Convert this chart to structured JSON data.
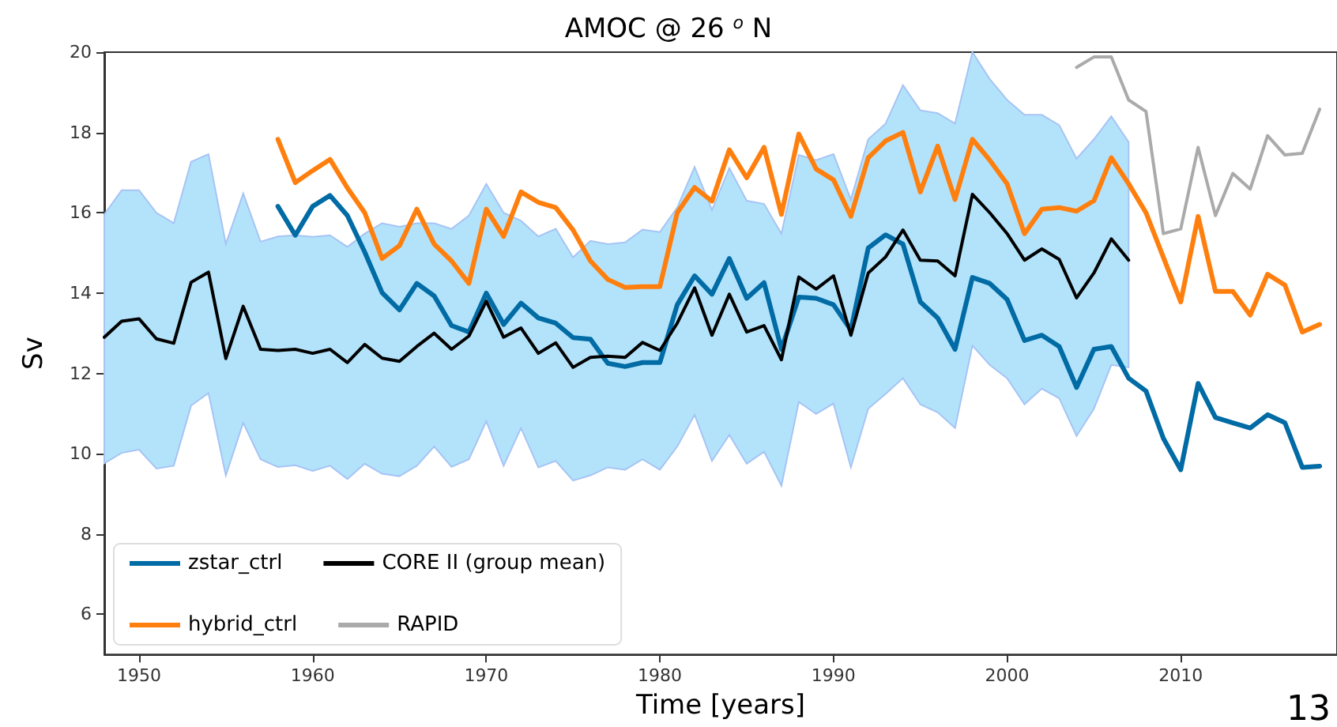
{
  "chart_data": {
    "type": "line",
    "title": "AMOC @ 26 $^{o}$ N",
    "xlabel": "Time [years]",
    "ylabel": "Sv",
    "xlim": [
      1948,
      2019
    ],
    "xticks": [
      1950,
      1960,
      1970,
      1980,
      1990,
      2000,
      2010
    ],
    "ylim": [
      5,
      20
    ],
    "yticks": [
      6,
      8,
      10,
      12,
      14,
      16,
      18,
      20
    ],
    "grid": false,
    "legend": "bottom left",
    "marker": "none",
    "line_style": "solid",
    "annotations": [
      "13"
    ],
    "series": [
      {
        "name": "zstar_ctrl",
        "color": "#006ba4",
        "x": [
          1958,
          1959,
          1960,
          1961,
          1962,
          1963,
          1964,
          1965,
          1966,
          1967,
          1968,
          1969,
          1970,
          1971,
          1972,
          1973,
          1974,
          1975,
          1976,
          1977,
          1978,
          1979,
          1980,
          1981,
          1982,
          1983,
          1984,
          1985,
          1986,
          1987,
          1988,
          1989,
          1990,
          1991,
          1992,
          1993,
          1994,
          1995,
          1996,
          1997,
          1998,
          1999,
          2000,
          2001,
          2002,
          2003,
          2004,
          2005,
          2006,
          2007,
          2008,
          2009,
          2010,
          2011,
          2012,
          2013,
          2014,
          2015,
          2016,
          2017,
          2018
        ],
        "values": [
          16.16,
          15.44,
          16.16,
          16.43,
          15.93,
          15.02,
          14.01,
          13.58,
          14.24,
          13.93,
          13.19,
          13.03,
          14.0,
          13.22,
          13.75,
          13.38,
          13.25,
          12.89,
          12.85,
          12.25,
          12.17,
          12.27,
          12.27,
          13.71,
          14.43,
          13.97,
          14.86,
          13.87,
          14.26,
          12.6,
          13.9,
          13.87,
          13.71,
          13.08,
          15.12,
          15.45,
          15.22,
          13.78,
          13.38,
          12.6,
          14.39,
          14.24,
          13.84,
          12.82,
          12.95,
          12.67,
          11.65,
          12.6,
          12.67,
          11.88,
          11.56,
          10.38,
          9.6,
          11.75,
          10.9,
          10.77,
          10.64,
          10.97,
          10.77,
          9.66,
          9.69
        ]
      },
      {
        "name": "hybrid_ctrl",
        "color": "#ff7f0e",
        "x": [
          1958,
          1959,
          1960,
          1961,
          1962,
          1963,
          1964,
          1965,
          1966,
          1967,
          1968,
          1969,
          1970,
          1971,
          1972,
          1973,
          1974,
          1975,
          1976,
          1977,
          1978,
          1979,
          1980,
          1981,
          1982,
          1983,
          1984,
          1985,
          1986,
          1987,
          1988,
          1989,
          1990,
          1991,
          1992,
          1993,
          1994,
          1995,
          1996,
          1997,
          1998,
          1999,
          2000,
          2001,
          2002,
          2003,
          2004,
          2005,
          2006,
          2007,
          2008,
          2009,
          2010,
          2011,
          2012,
          2013,
          2014,
          2015,
          2016,
          2017,
          2018
        ],
        "values": [
          17.83,
          16.75,
          17.05,
          17.33,
          16.62,
          16.0,
          14.86,
          15.18,
          16.09,
          15.22,
          14.8,
          14.24,
          16.09,
          15.41,
          16.52,
          16.26,
          16.13,
          15.57,
          14.8,
          14.34,
          14.14,
          14.16,
          14.16,
          16.0,
          16.63,
          16.29,
          17.57,
          16.87,
          17.63,
          15.96,
          17.96,
          17.09,
          16.82,
          15.91,
          17.37,
          17.79,
          18.0,
          16.52,
          17.66,
          16.33,
          17.83,
          17.31,
          16.72,
          15.48,
          16.09,
          16.13,
          16.04,
          16.3,
          17.37,
          16.72,
          16.0,
          14.89,
          13.78,
          15.91,
          14.04,
          14.04,
          13.45,
          14.47,
          14.2,
          13.03,
          13.22
        ]
      },
      {
        "name": "CORE II (group mean)",
        "color": "#000000",
        "x": [
          1948,
          1949,
          1950,
          1951,
          1952,
          1953,
          1954,
          1955,
          1956,
          1957,
          1958,
          1959,
          1960,
          1961,
          1962,
          1963,
          1964,
          1965,
          1966,
          1967,
          1968,
          1969,
          1970,
          1971,
          1972,
          1973,
          1974,
          1975,
          1976,
          1977,
          1978,
          1979,
          1980,
          1981,
          1982,
          1983,
          1984,
          1985,
          1986,
          1987,
          1988,
          1989,
          1990,
          1991,
          1992,
          1993,
          1994,
          1995,
          1996,
          1997,
          1998,
          1999,
          2000,
          2001,
          2002,
          2003,
          2004,
          2005,
          2006,
          2007
        ],
        "values": [
          12.9,
          13.3,
          13.36,
          12.86,
          12.75,
          14.27,
          14.52,
          12.37,
          13.67,
          12.6,
          12.57,
          12.6,
          12.5,
          12.6,
          12.27,
          12.72,
          12.38,
          12.3,
          12.67,
          13.0,
          12.6,
          12.93,
          13.8,
          12.9,
          13.13,
          12.5,
          12.76,
          12.15,
          12.4,
          12.43,
          12.4,
          12.77,
          12.57,
          13.25,
          14.13,
          12.95,
          13.97,
          13.03,
          13.19,
          12.34,
          14.4,
          14.1,
          14.43,
          12.95,
          14.5,
          14.9,
          15.57,
          14.82,
          14.8,
          14.43,
          16.46,
          16.0,
          15.48,
          14.82,
          15.1,
          14.84,
          13.88,
          14.5,
          15.35,
          14.82
        ],
        "lower": [
          9.76,
          10.02,
          10.1,
          9.63,
          9.7,
          11.2,
          11.51,
          9.46,
          10.77,
          9.86,
          9.67,
          9.71,
          9.57,
          9.7,
          9.37,
          9.75,
          9.5,
          9.44,
          9.7,
          10.18,
          9.67,
          9.86,
          10.81,
          9.7,
          10.64,
          9.66,
          9.82,
          9.33,
          9.46,
          9.66,
          9.6,
          9.86,
          9.6,
          10.18,
          10.97,
          9.82,
          10.47,
          9.75,
          10.05,
          9.2,
          11.29,
          10.99,
          11.25,
          9.66,
          11.12,
          11.49,
          11.88,
          11.23,
          11.03,
          10.64,
          12.69,
          12.21,
          11.88,
          11.23,
          11.62,
          11.38,
          10.44,
          11.12,
          12.21,
          12.15
        ],
        "upper": [
          15.96,
          16.56,
          16.56,
          16.0,
          15.74,
          17.27,
          17.46,
          15.22,
          16.48,
          15.28,
          15.41,
          15.44,
          15.4,
          15.44,
          15.15,
          15.48,
          15.74,
          15.65,
          15.74,
          15.74,
          15.6,
          15.93,
          16.72,
          16.0,
          15.8,
          15.41,
          15.6,
          14.89,
          15.3,
          15.22,
          15.26,
          15.58,
          15.52,
          16.13,
          17.14,
          16.07,
          17.11,
          16.3,
          16.22,
          15.48,
          17.44,
          17.31,
          17.46,
          16.33,
          17.83,
          18.22,
          19.18,
          18.55,
          18.48,
          18.22,
          20.0,
          19.33,
          18.81,
          18.44,
          18.44,
          18.18,
          17.35,
          17.83,
          18.4,
          17.76
        ]
      },
      {
        "name": "RAPID",
        "color": "#aaaaaa",
        "x": [
          2004,
          2005,
          2006,
          2007,
          2008,
          2009,
          2010,
          2011,
          2012,
          2013,
          2014,
          2015,
          2016,
          2017,
          2018
        ],
        "values": [
          19.62,
          19.88,
          19.88,
          18.81,
          18.52,
          15.48,
          15.6,
          17.63,
          15.93,
          16.98,
          16.59,
          17.92,
          17.44,
          17.48,
          18.58
        ]
      }
    ]
  }
}
